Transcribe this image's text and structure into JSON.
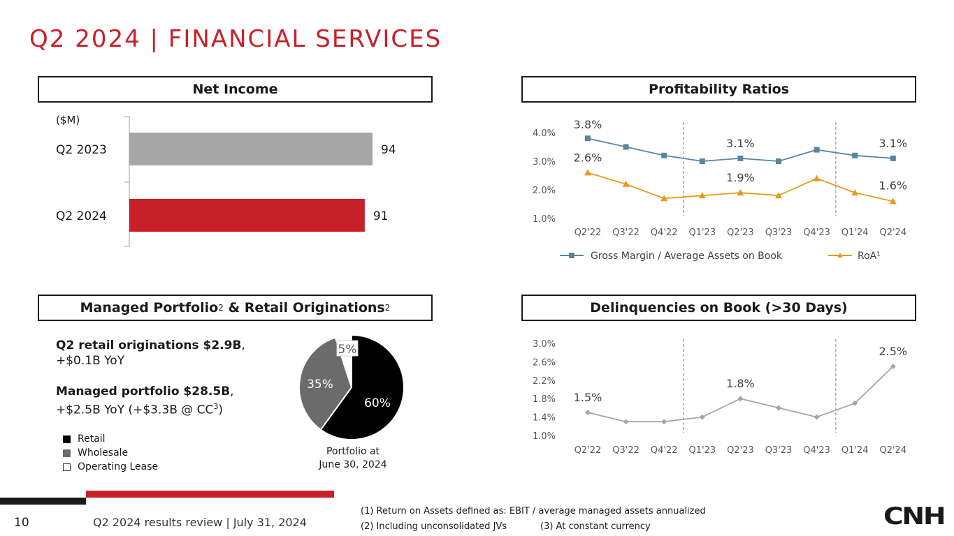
{
  "title": "Q2 2024 | FINANCIAL SERVICES",
  "panels": {
    "net_income": "Net Income",
    "profitability": "Profitability Ratios",
    "portfolio": {
      "part1": "Managed Portfolio",
      "sup1": "2",
      "amp": " & ",
      "part2": "Retail Originations",
      "sup2": "2"
    },
    "delinquencies": "Delinquencies on Book (>30 Days)"
  },
  "colors": {
    "accent": "#c8202a",
    "q2_2023_bar": "#a6a6a6",
    "q2_2024_bar": "#c8202a",
    "gross_margin": "#5b849f",
    "roa": "#e39b1b",
    "delinq": "#a6a6a6"
  },
  "chart_data": [
    {
      "type": "bar",
      "orientation": "horizontal",
      "unit_label": "($M)",
      "categories": [
        "Q2 2023",
        "Q2 2024"
      ],
      "values": [
        94,
        91
      ],
      "value_labels": [
        "94",
        "91"
      ]
    },
    {
      "type": "line",
      "categories": [
        "Q2'22",
        "Q3'22",
        "Q4'22",
        "Q1'23",
        "Q2'23",
        "Q3'23",
        "Q4'23",
        "Q1'24",
        "Q2'24"
      ],
      "yticks": [
        "4.0%",
        "3.0%",
        "2.0%",
        "1.0%"
      ],
      "ylim": [
        1.0,
        4.0
      ],
      "series": [
        {
          "name": "Gross Margin / Average Assets on Book",
          "values": [
            3.8,
            3.5,
            3.2,
            3.0,
            3.1,
            3.0,
            3.4,
            3.2,
            3.1
          ]
        },
        {
          "name": "RoA¹",
          "values": [
            2.6,
            2.2,
            1.7,
            1.8,
            1.9,
            1.8,
            2.4,
            1.9,
            1.6
          ]
        }
      ],
      "annotations": [
        "3.8%",
        "2.6%",
        "3.1%",
        "1.9%",
        "3.1%",
        "1.6%"
      ]
    },
    {
      "type": "pie",
      "labels": [
        "Retail",
        "Wholesale",
        "Operating Lease"
      ],
      "values": [
        60,
        35,
        5
      ],
      "value_labels": [
        "60%",
        "35%",
        "5%"
      ],
      "caption": [
        "Portfolio at",
        "June 30, 2024"
      ]
    },
    {
      "type": "line",
      "categories": [
        "Q2'22",
        "Q3'22",
        "Q4'22",
        "Q1'23",
        "Q2'23",
        "Q3'23",
        "Q4'23",
        "Q1'24",
        "Q2'24"
      ],
      "yticks": [
        "3.0%",
        "2.6%",
        "2.2%",
        "1.8%",
        "1.4%",
        "1.0%"
      ],
      "ylim": [
        1.0,
        3.0
      ],
      "series": [
        {
          "values": [
            1.5,
            1.3,
            1.3,
            1.4,
            1.8,
            1.6,
            1.4,
            1.7,
            2.5
          ]
        }
      ],
      "annotations": [
        "1.5%",
        "1.8%",
        "2.5%"
      ]
    }
  ],
  "summary": {
    "line1_bold": "Q2 retail originations $2.9B",
    "line1_rest": ",",
    "line2": "+$0.1B YoY",
    "line3_bold": "Managed portfolio $28.5B",
    "line3_rest": ",",
    "line4_pre": "+$2.5B YoY (+$3.3B @ CC",
    "line4_sup": "3",
    "line4_post": ")"
  },
  "footer": {
    "page": "10",
    "text": "Q2 2024 results review | July 31, 2024",
    "note1": "(1) Return on Assets defined as: EBIT / average managed assets annualized",
    "note2": "(2) Including unconsolidated JVs",
    "note3": "(3) At constant currency",
    "logo": "CNH"
  }
}
